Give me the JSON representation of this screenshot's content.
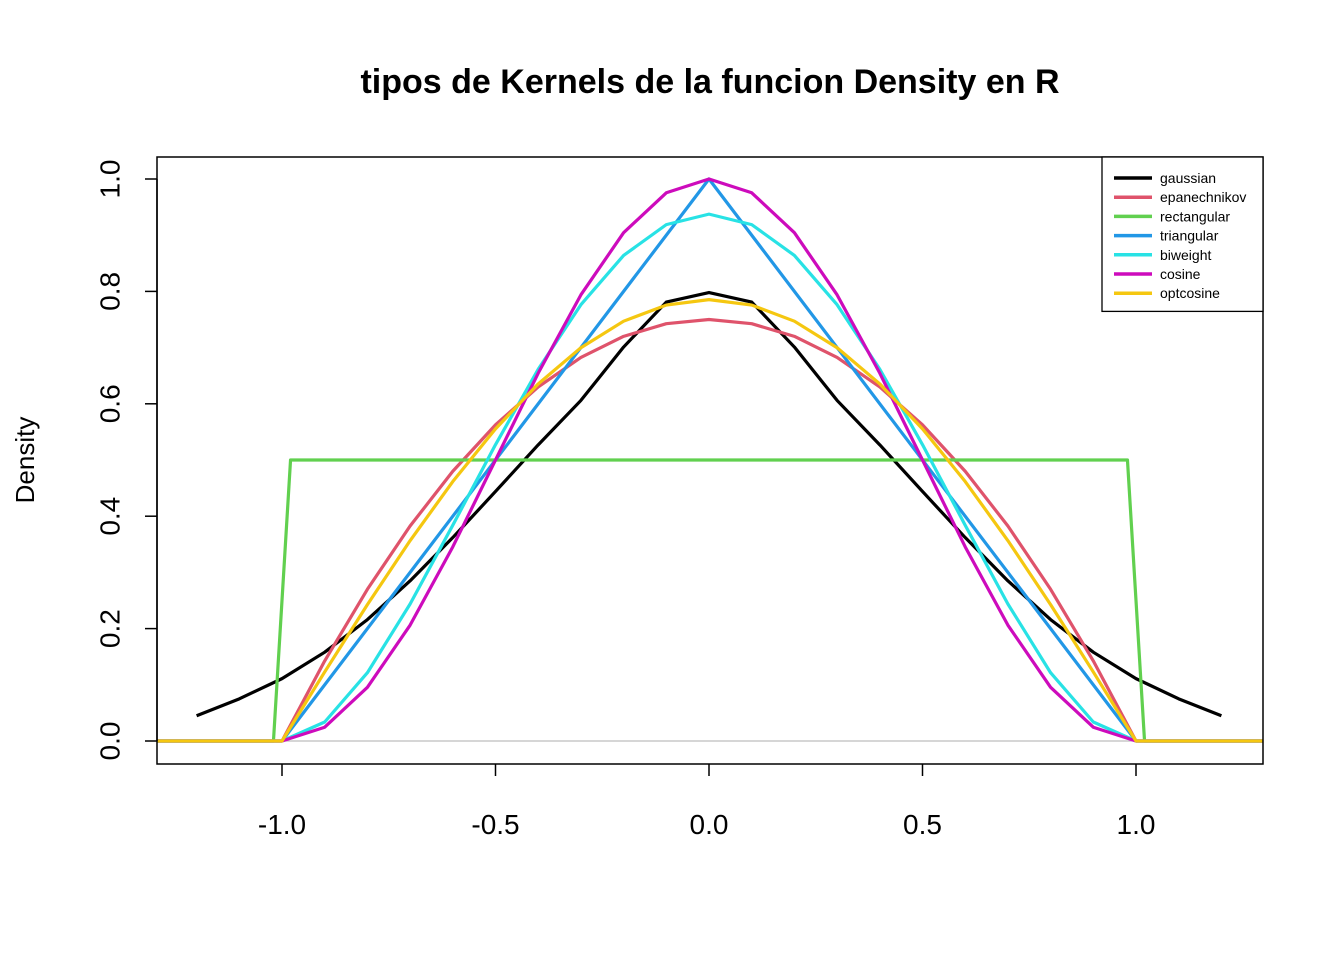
{
  "chart_data": {
    "type": "line",
    "title": "tipos de Kernels de la funcion Density en R",
    "xlabel": "",
    "ylabel": "Density",
    "xlim": [
      -1.3,
      1.3
    ],
    "ylim": [
      -0.04,
      1.04
    ],
    "x_ticks": [
      -1.0,
      -0.5,
      0.0,
      0.5,
      1.0
    ],
    "x_tick_labels": [
      "-1.0",
      "-0.5",
      "0.0",
      "0.5",
      "1.0"
    ],
    "y_ticks": [
      0.0,
      0.2,
      0.4,
      0.6,
      0.8,
      1.0
    ],
    "y_tick_labels": [
      "0.0",
      "0.2",
      "0.4",
      "0.6",
      "0.8",
      "1.0"
    ],
    "grid": false,
    "baseline": {
      "y": 0,
      "color": "#bebebe"
    },
    "legend": {
      "position": "top-right"
    },
    "series": [
      {
        "name": "gaussian",
        "color": "#000000",
        "x": [
          -1.2,
          -1.1,
          -1.0,
          -0.9,
          -0.8,
          -0.7,
          -0.6,
          -0.5,
          -0.4,
          -0.3,
          -0.2,
          -0.1,
          0.0,
          0.1,
          0.2,
          0.3,
          0.4,
          0.5,
          0.6,
          0.7,
          0.8,
          0.9,
          1.0,
          1.1,
          1.2
        ],
        "y": [
          0.045,
          0.075,
          0.111,
          0.158,
          0.216,
          0.285,
          0.362,
          0.444,
          0.527,
          0.606,
          0.701,
          0.781,
          0.798,
          0.781,
          0.701,
          0.606,
          0.527,
          0.444,
          0.362,
          0.285,
          0.216,
          0.158,
          0.111,
          0.075,
          0.045
        ]
      },
      {
        "name": "epanechnikov",
        "color": "#df536b",
        "x": [
          -1.3,
          -1.0,
          -0.9,
          -0.8,
          -0.7,
          -0.6,
          -0.5,
          -0.4,
          -0.3,
          -0.2,
          -0.1,
          0.0,
          0.1,
          0.2,
          0.3,
          0.4,
          0.5,
          0.6,
          0.7,
          0.8,
          0.9,
          1.0,
          1.3
        ],
        "y": [
          0,
          0,
          0.1425,
          0.27,
          0.3825,
          0.48,
          0.5625,
          0.63,
          0.6825,
          0.72,
          0.7425,
          0.75,
          0.7425,
          0.72,
          0.6825,
          0.63,
          0.5625,
          0.48,
          0.3825,
          0.27,
          0.1425,
          0,
          0
        ]
      },
      {
        "name": "rectangular",
        "color": "#61d04f",
        "x": [
          -1.3,
          -1.02,
          -1.0,
          -0.98,
          0.98,
          1.0,
          1.02,
          1.3
        ],
        "y": [
          0,
          0,
          0.25,
          0.5,
          0.5,
          0.25,
          0,
          0
        ]
      },
      {
        "name": "triangular",
        "color": "#2297e6",
        "x": [
          -1.3,
          -1.0,
          0.0,
          1.0,
          1.3
        ],
        "y": [
          0,
          0,
          1.0,
          0,
          0
        ]
      },
      {
        "name": "biweight",
        "color": "#28e2e5",
        "x": [
          -1.3,
          -1.0,
          -0.9,
          -0.8,
          -0.7,
          -0.6,
          -0.5,
          -0.4,
          -0.3,
          -0.2,
          -0.1,
          0.0,
          0.1,
          0.2,
          0.3,
          0.4,
          0.5,
          0.6,
          0.7,
          0.8,
          0.9,
          1.0,
          1.3
        ],
        "y": [
          0,
          0,
          0.0338,
          0.1215,
          0.2438,
          0.384,
          0.5273,
          0.6615,
          0.7763,
          0.864,
          0.9188,
          0.9375,
          0.9188,
          0.864,
          0.7763,
          0.6615,
          0.5273,
          0.384,
          0.2438,
          0.1215,
          0.0338,
          0,
          0
        ]
      },
      {
        "name": "cosine",
        "color": "#cd0bbc",
        "x": [
          -1.3,
          -1.0,
          -0.9,
          -0.8,
          -0.7,
          -0.6,
          -0.5,
          -0.4,
          -0.3,
          -0.2,
          -0.1,
          0.0,
          0.1,
          0.2,
          0.3,
          0.4,
          0.5,
          0.6,
          0.7,
          0.8,
          0.9,
          1.0,
          1.3
        ],
        "y": [
          0,
          0,
          0.0245,
          0.0955,
          0.2061,
          0.3455,
          0.5,
          0.6545,
          0.7939,
          0.9045,
          0.9755,
          1.0,
          0.9755,
          0.9045,
          0.7939,
          0.6545,
          0.5,
          0.3455,
          0.2061,
          0.0955,
          0.0245,
          0,
          0
        ]
      },
      {
        "name": "optcosine",
        "color": "#f5c710",
        "x": [
          -1.3,
          -1.0,
          -0.9,
          -0.8,
          -0.7,
          -0.6,
          -0.5,
          -0.4,
          -0.3,
          -0.2,
          -0.1,
          0.0,
          0.1,
          0.2,
          0.3,
          0.4,
          0.5,
          0.6,
          0.7,
          0.8,
          0.9,
          1.0,
          1.3
        ],
        "y": [
          0,
          0,
          0.1229,
          0.2427,
          0.3565,
          0.4617,
          0.5554,
          0.6354,
          0.6998,
          0.747,
          0.7757,
          0.7854,
          0.7757,
          0.747,
          0.6998,
          0.6354,
          0.5554,
          0.4617,
          0.3565,
          0.2427,
          0.1229,
          0,
          0
        ]
      }
    ]
  }
}
